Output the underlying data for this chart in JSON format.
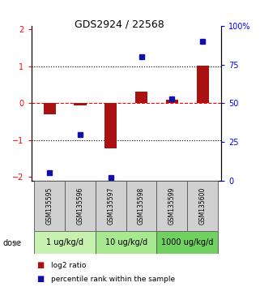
{
  "title": "GDS2924 / 22568",
  "samples": [
    "GSM135595",
    "GSM135596",
    "GSM135597",
    "GSM135598",
    "GSM135599",
    "GSM135600"
  ],
  "log2_ratio": [
    -0.3,
    -0.05,
    -1.22,
    0.32,
    0.1,
    1.02
  ],
  "percentile_rank": [
    5,
    30,
    2,
    80,
    53,
    90
  ],
  "dose_groups": [
    {
      "label": "1 ug/kg/d",
      "samples": [
        0,
        1
      ],
      "color": "#c8f0b0"
    },
    {
      "label": "10 ug/kg/d",
      "samples": [
        2,
        3
      ],
      "color": "#a8e890"
    },
    {
      "label": "1000 ug/kg/d",
      "samples": [
        4,
        5
      ],
      "color": "#70d060"
    }
  ],
  "bar_color": "#aa1111",
  "dot_color": "#1111aa",
  "ylim_left": [
    -2.1,
    2.1
  ],
  "ylim_right": [
    0,
    100
  ],
  "left_ticks": [
    -2,
    -1,
    0,
    1,
    2
  ],
  "right_ticks": [
    0,
    25,
    50,
    75,
    100
  ],
  "bg_color": "#ffffff",
  "legend_red_label": "log2 ratio",
  "legend_blue_label": "percentile rank within the sample",
  "bar_width": 0.4
}
